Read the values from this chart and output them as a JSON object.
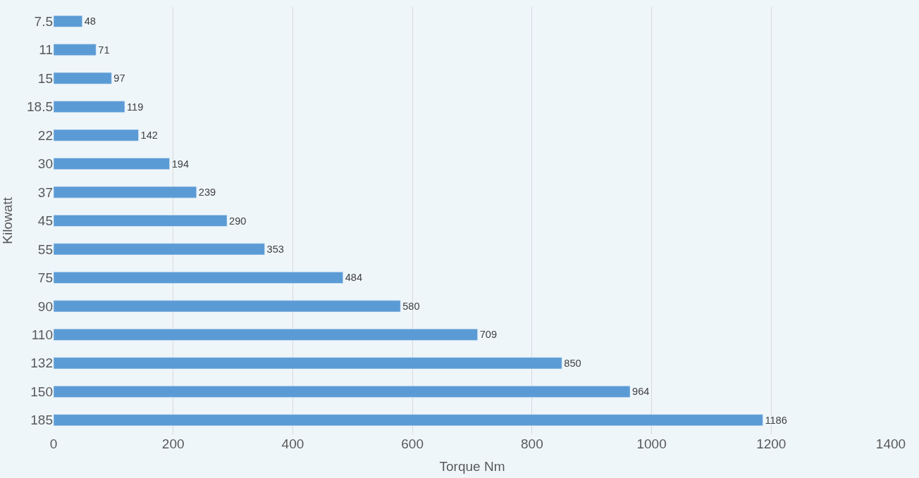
{
  "chart_data": {
    "type": "bar",
    "orientation": "horizontal",
    "xlabel": "Torque Nm",
    "ylabel": "Kilowatt",
    "categories": [
      "7.5",
      "11",
      "15",
      "18.5",
      "22",
      "30",
      "37",
      "45",
      "55",
      "75",
      "90",
      "110",
      "132",
      "150",
      "185"
    ],
    "values": [
      48,
      71,
      97,
      119,
      142,
      194,
      239,
      290,
      353,
      484,
      580,
      709,
      850,
      964,
      1186
    ],
    "color": "#5b9bd5",
    "xlim": [
      0,
      1400
    ],
    "xticks": [
      0,
      200,
      400,
      600,
      800,
      1000,
      1200,
      1400
    ],
    "grid": "x",
    "data_labels": true,
    "legend": false
  }
}
